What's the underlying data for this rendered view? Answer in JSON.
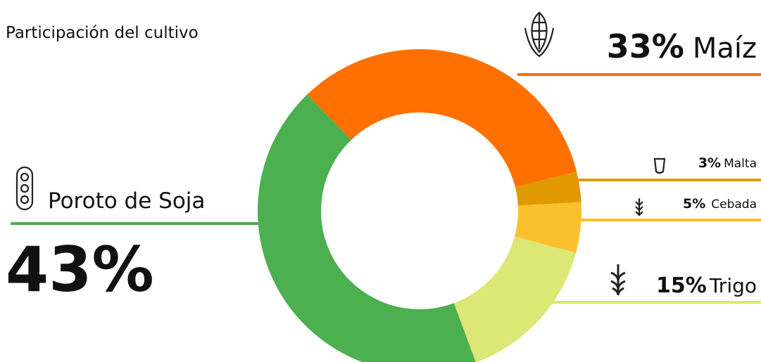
{
  "chart_data": {
    "type": "pie",
    "title": "Participación del cultivo",
    "categories": [
      "Maíz",
      "Malta",
      "Cebada",
      "Trigo",
      "Poroto de Soja"
    ],
    "values": [
      33,
      3,
      5,
      15,
      43
    ],
    "value_labels": [
      "33%",
      "3%",
      "5%",
      "15%",
      "43%"
    ],
    "colors": [
      "#ff7000",
      "#e09a00",
      "#fbc02d",
      "#dce775",
      "#4caf50"
    ]
  }
}
